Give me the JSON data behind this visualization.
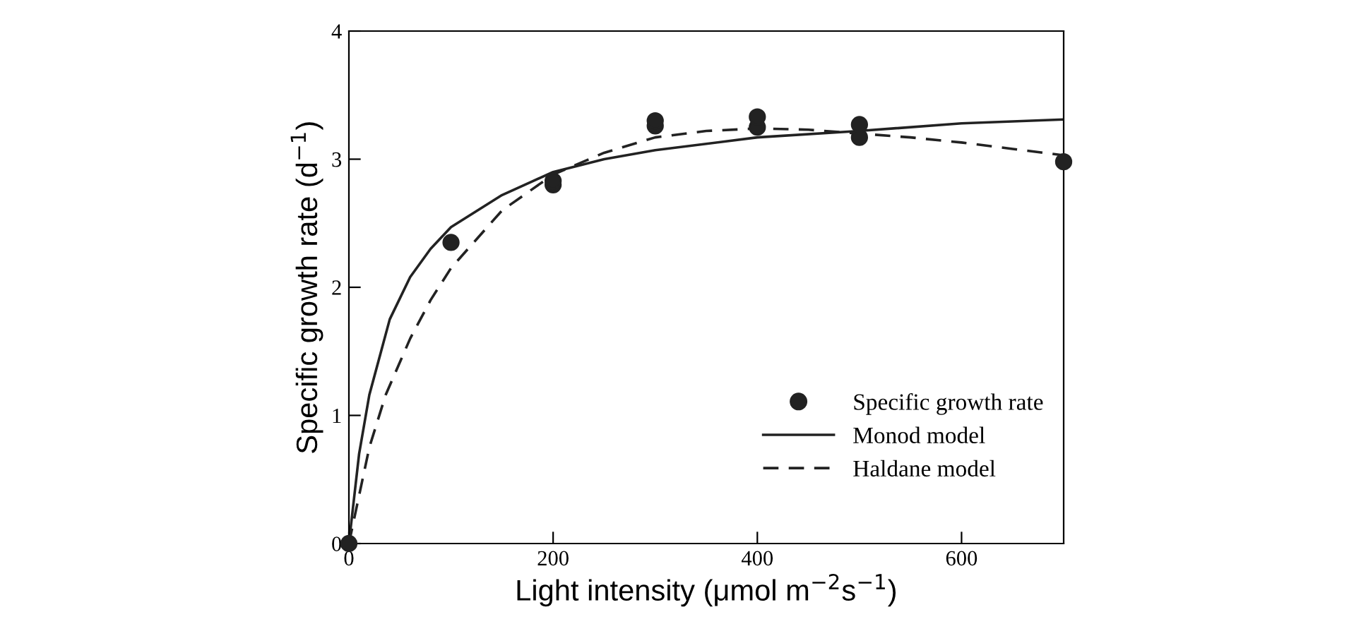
{
  "chart_data": {
    "type": "scatter",
    "xlabel": "Light intensity (μmol m$^{−2}$s$^{−1}$)",
    "ylabel": "Specific growth rate (d$^{−1}$)",
    "xlim": [
      0,
      700
    ],
    "xticks": [
      0,
      200,
      400,
      600
    ],
    "ylim": [
      0,
      4
    ],
    "yticks": [
      0,
      1,
      2,
      3,
      4
    ],
    "grid": false,
    "legend": "bottom right",
    "series": [
      {
        "name": "Specific growth rate",
        "marker": "circle",
        "color": "#222222",
        "x": [
          0,
          100,
          200,
          200,
          300,
          300,
          400,
          400,
          500,
          500,
          700
        ],
        "values": [
          0,
          2.35,
          2.8,
          2.83,
          3.26,
          3.3,
          3.25,
          3.33,
          3.17,
          3.27,
          2.98
        ]
      },
      {
        "name": "Monod model",
        "type": "line",
        "line_style": "solid",
        "color": "#222222",
        "x": [
          0,
          10,
          20,
          40,
          60,
          80,
          100,
          150,
          200,
          250,
          300,
          400,
          500,
          600,
          700
        ],
        "values": [
          0,
          0.7,
          1.16,
          1.75,
          2.08,
          2.3,
          2.47,
          2.72,
          2.9,
          3.0,
          3.07,
          3.17,
          3.22,
          3.28,
          3.31
        ]
      },
      {
        "name": "Haldane model",
        "type": "line",
        "line_style": "dashed",
        "color": "#222222",
        "x": [
          0,
          20,
          36,
          60,
          80,
          100,
          150,
          200,
          250,
          300,
          350,
          400,
          450,
          500,
          550,
          600,
          650,
          700
        ],
        "values": [
          0,
          0.75,
          1.16,
          1.6,
          1.9,
          2.15,
          2.6,
          2.88,
          3.05,
          3.17,
          3.22,
          3.24,
          3.23,
          3.2,
          3.17,
          3.13,
          3.08,
          3.03
        ]
      }
    ]
  }
}
